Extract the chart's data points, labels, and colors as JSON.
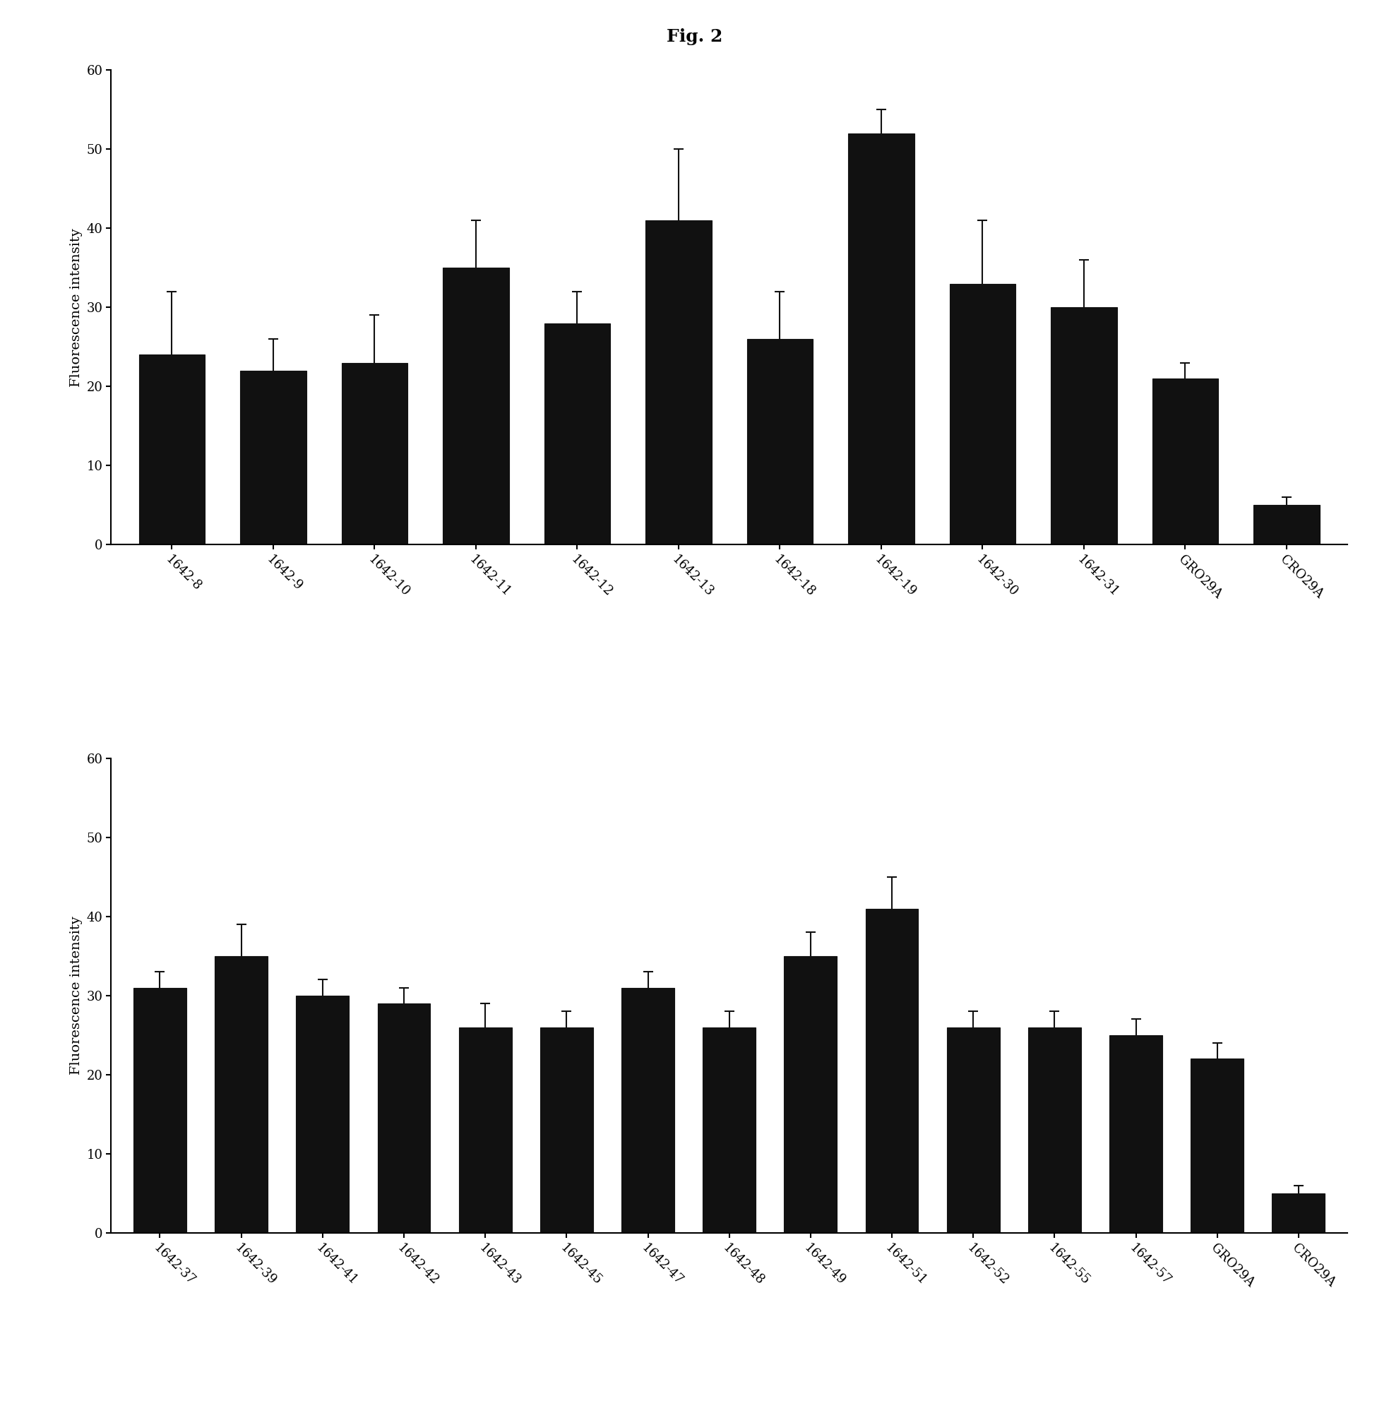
{
  "title": "Fig. 2",
  "chart1": {
    "categories": [
      "1642-8",
      "1642-9",
      "1642-10",
      "1642-11",
      "1642-12",
      "1642-13",
      "1642-18",
      "1642-19",
      "1642-30",
      "1642-31",
      "GRO29A",
      "CRO29A"
    ],
    "values": [
      24,
      22,
      23,
      35,
      28,
      41,
      26,
      52,
      33,
      30,
      21,
      5
    ],
    "errors": [
      8,
      4,
      6,
      6,
      4,
      9,
      6,
      3,
      8,
      6,
      2,
      1
    ],
    "ylabel": "Fluorescence intensity",
    "ylim": [
      0,
      60
    ],
    "yticks": [
      0,
      10,
      20,
      30,
      40,
      50,
      60
    ]
  },
  "chart2": {
    "categories": [
      "1642-37",
      "1642-39",
      "1642-41",
      "1642-42",
      "1642-43",
      "1642-45",
      "1642-47",
      "1642-48",
      "1642-49",
      "1642-51",
      "1642-52",
      "1642-55",
      "1642-57",
      "GRO29A",
      "CRO29A"
    ],
    "values": [
      31,
      35,
      30,
      29,
      26,
      26,
      31,
      26,
      35,
      41,
      26,
      26,
      25,
      22,
      5
    ],
    "errors": [
      2,
      4,
      2,
      2,
      3,
      2,
      2,
      2,
      3,
      4,
      2,
      2,
      2,
      2,
      1
    ],
    "ylabel": "Fluorescence intensity",
    "ylim": [
      0,
      60
    ],
    "yticks": [
      0,
      10,
      20,
      30,
      40,
      50,
      60
    ]
  },
  "bar_color": "#111111",
  "bar_width": 0.65,
  "bar_edge_color": "#111111",
  "error_color": "#111111",
  "background_color": "#ffffff",
  "title_fontsize": 18,
  "label_fontsize": 14,
  "tick_fontsize": 13
}
